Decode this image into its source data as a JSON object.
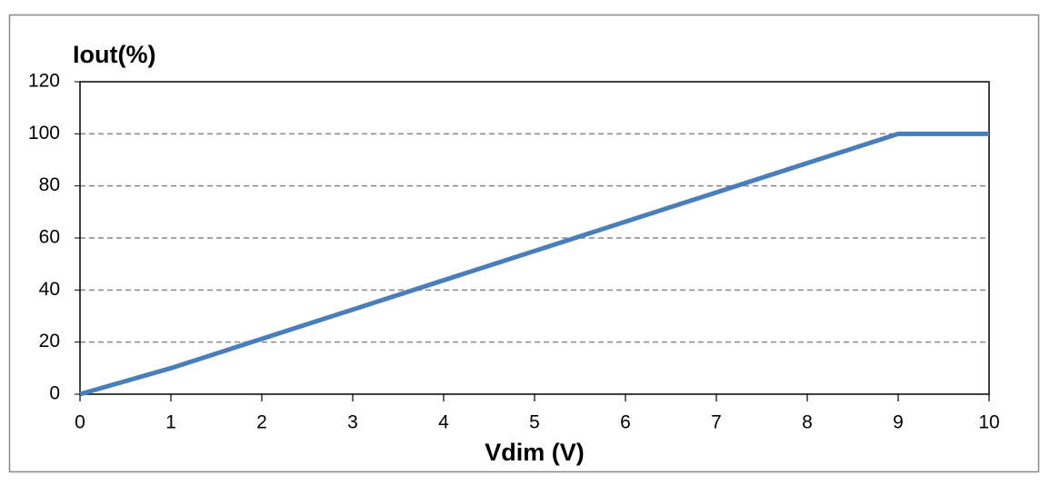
{
  "chart_data": {
    "type": "line",
    "y_label": "Iout(%)",
    "x_label": "Vdim (V)",
    "x": [
      0,
      1,
      9,
      10
    ],
    "series": [
      {
        "name": "Iout",
        "color": "#4a7ebb",
        "values": [
          0,
          10,
          100,
          100
        ]
      }
    ],
    "xlim": [
      0,
      10
    ],
    "xticks": [
      0,
      1,
      2,
      3,
      4,
      5,
      6,
      7,
      8,
      9,
      10
    ],
    "ylim": [
      0,
      120
    ],
    "yticks": [
      0,
      20,
      40,
      60,
      80,
      100,
      120
    ],
    "grid": true
  }
}
